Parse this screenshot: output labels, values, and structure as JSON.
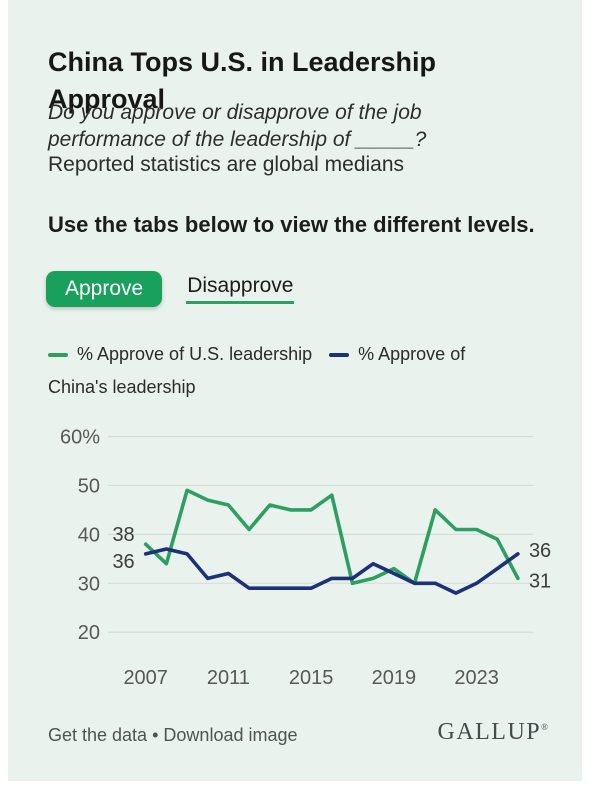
{
  "card": {
    "title": "China Tops U.S. in Leadership Approval",
    "survey_question": "Do you approve or disapprove of the job performance of the leadership of _____?",
    "survey_note": "Reported statistics are global medians",
    "tabs_instruction": "Use the tabs below to view the different levels.",
    "tabs": [
      {
        "label": "Approve",
        "active": true
      },
      {
        "label": "Disapprove",
        "active": false
      }
    ]
  },
  "legend": {
    "us_label": "% Approve of U.S. leadership",
    "china_label_line1": "% Approve of",
    "china_label_line2": "China's leadership"
  },
  "colors": {
    "card_bg": "#e9f2ec",
    "us_green": "#2d9f63",
    "china_navy": "#1c3177",
    "button_green": "#18a05c",
    "gridline": "#d7ded7",
    "axis_text": "#585858",
    "data_label_text": "#3d3d3d"
  },
  "chart_data": {
    "type": "line",
    "title": "China Tops U.S. in Leadership Approval",
    "x": [
      2007,
      2008,
      2009,
      2010,
      2011,
      2012,
      2013,
      2014,
      2015,
      2016,
      2017,
      2018,
      2019,
      2020,
      2021,
      2022,
      2023,
      2024,
      2025
    ],
    "series": [
      {
        "name": "% Approve of U.S. leadership",
        "color": "#2d9f63",
        "values": [
          38,
          34,
          49,
          47,
          46,
          41,
          46,
          45,
          45,
          48,
          30,
          31,
          33,
          30,
          45,
          41,
          41,
          39,
          31
        ]
      },
      {
        "name": "% Approve of China's leadership",
        "color": "#1c3177",
        "values": [
          36,
          37,
          36,
          31,
          32,
          29,
          29,
          29,
          29,
          31,
          31,
          34,
          32,
          30,
          30,
          28,
          30,
          33,
          36
        ]
      }
    ],
    "ylim": [
      20,
      60
    ],
    "yticks": [
      {
        "label": "60%",
        "value": 60
      },
      {
        "label": "50",
        "value": 50
      },
      {
        "label": "40",
        "value": 40
      },
      {
        "label": "30",
        "value": 30
      },
      {
        "label": "20",
        "value": 20
      }
    ],
    "xticks": [
      2007,
      2011,
      2015,
      2019,
      2023
    ],
    "point_labels": {
      "us_start": "38",
      "china_start": "36",
      "china_end": "36",
      "us_end": "31"
    },
    "grid": true,
    "legend_position": "top"
  },
  "footer": {
    "link_get_data": "Get the data",
    "separator": "•",
    "link_download": "Download image",
    "brand": "GALLUP",
    "brand_mark": "®"
  }
}
